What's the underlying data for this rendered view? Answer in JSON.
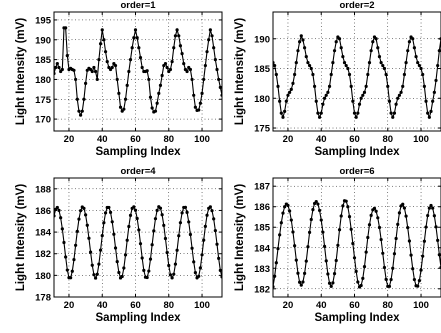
{
  "chart_data": [
    {
      "type": "line",
      "title": "order=1",
      "xlabel": "Sampling Index",
      "ylabel": "Light Intensity (mV)",
      "xlim": [
        11,
        112
      ],
      "ylim": [
        167,
        197
      ],
      "xticks": [
        20,
        40,
        60,
        80,
        100
      ],
      "yticks": [
        170,
        175,
        180,
        185,
        190,
        195
      ],
      "grid": true,
      "x": [
        11,
        12,
        13,
        14,
        15,
        16,
        17,
        18,
        19,
        20,
        21,
        22,
        23,
        24,
        25,
        26,
        27,
        28,
        29,
        30,
        31,
        32,
        33,
        34,
        35,
        36,
        37,
        38,
        39,
        40,
        41,
        42,
        43,
        44,
        45,
        46,
        47,
        48,
        49,
        50,
        51,
        52,
        53,
        54,
        55,
        56,
        57,
        58,
        59,
        60,
        61,
        62,
        63,
        64,
        65,
        66,
        67,
        68,
        69,
        70,
        71,
        72,
        73,
        74,
        75,
        76,
        77,
        78,
        79,
        80,
        81,
        82,
        83,
        84,
        85,
        86,
        87,
        88,
        89,
        90,
        91,
        92,
        93,
        94,
        95,
        96,
        97,
        98,
        99,
        100,
        101,
        102,
        103,
        104,
        105,
        106,
        107,
        108,
        109,
        110,
        111,
        112
      ],
      "y": [
        181.5,
        183,
        184,
        183,
        182,
        182.5,
        193,
        193,
        186,
        182.5,
        182.8,
        182.5,
        182.3,
        180,
        175,
        172,
        171,
        172,
        175,
        179,
        182.3,
        182.8,
        182.5,
        182,
        183,
        182,
        180,
        185,
        189,
        192.5,
        190,
        187,
        184.5,
        183,
        182.5,
        183,
        184,
        183.5,
        180,
        176.5,
        173,
        172,
        172.5,
        175,
        178.5,
        182,
        185,
        188,
        190.5,
        192.5,
        190.5,
        188,
        185.5,
        183,
        182,
        182,
        182.2,
        180,
        175.5,
        172.8,
        171.8,
        172,
        174,
        176.5,
        178.5,
        181,
        183.5,
        184,
        183,
        182,
        182.5,
        184.5,
        188,
        191,
        192.5,
        191,
        188.5,
        186.5,
        184,
        182.5,
        182,
        183,
        182.5,
        180,
        176,
        173,
        172.2,
        172.3,
        174,
        176.5,
        180,
        183.5,
        187,
        190,
        192.5,
        191,
        188,
        185,
        182.5,
        180,
        178,
        176
      ]
    },
    {
      "type": "line",
      "title": "order=2",
      "xlabel": "Sampling Index",
      "ylabel": "Light Intensity (mV)",
      "xlim": [
        11,
        112
      ],
      "ylim": [
        174.5,
        194.5
      ],
      "xticks": [
        20,
        40,
        60,
        80,
        100
      ],
      "yticks": [
        175,
        180,
        185,
        190
      ],
      "grid": true,
      "x": [
        11,
        12,
        13,
        14,
        15,
        16,
        17,
        18,
        19,
        20,
        21,
        22,
        23,
        24,
        25,
        26,
        27,
        28,
        29,
        30,
        31,
        32,
        33,
        34,
        35,
        36,
        37,
        38,
        39,
        40,
        41,
        42,
        43,
        44,
        45,
        46,
        47,
        48,
        49,
        50,
        51,
        52,
        53,
        54,
        55,
        56,
        57,
        58,
        59,
        60,
        61,
        62,
        63,
        64,
        65,
        66,
        67,
        68,
        69,
        70,
        71,
        72,
        73,
        74,
        75,
        76,
        77,
        78,
        79,
        80,
        81,
        82,
        83,
        84,
        85,
        86,
        87,
        88,
        89,
        90,
        91,
        92,
        93,
        94,
        95,
        96,
        97,
        98,
        99,
        100,
        101,
        102,
        103,
        104,
        105,
        106,
        107,
        108,
        109,
        110,
        111,
        112
      ],
      "y": [
        186,
        185.5,
        184,
        182,
        179.5,
        177.5,
        176.8,
        177.8,
        179.5,
        180.5,
        181,
        181.5,
        182.5,
        184,
        186,
        188,
        189.5,
        190.5,
        189.8,
        188.5,
        187,
        186,
        185.5,
        185,
        184,
        182,
        179.5,
        177.5,
        176.8,
        177.5,
        179,
        180,
        180.5,
        181,
        182,
        184,
        186,
        188,
        189.5,
        190.3,
        190,
        188.5,
        187,
        186,
        185.5,
        185,
        184,
        182,
        179.5,
        177.5,
        176.8,
        177.5,
        179,
        180,
        180.5,
        181,
        182,
        184,
        186,
        188,
        189.5,
        190.3,
        190,
        188.5,
        187,
        186,
        185.5,
        185,
        184,
        182,
        179.5,
        177.5,
        176.8,
        177.5,
        179,
        180,
        180.5,
        181,
        182,
        184,
        186,
        188,
        189.5,
        190.3,
        190,
        188.5,
        187,
        186,
        185.5,
        185,
        184,
        182,
        179.5,
        177.5,
        176.8,
        177.8,
        179.5,
        181,
        183,
        185.5,
        188,
        190
      ]
    },
    {
      "type": "line",
      "title": "order=4",
      "xlabel": "Sampling Index",
      "ylabel": "Light Intensity (mV)",
      "xlim": [
        11,
        112
      ],
      "ylim": [
        178,
        189
      ],
      "xticks": [
        20,
        40,
        60,
        80,
        100
      ],
      "yticks": [
        178,
        180,
        182,
        184,
        186,
        188
      ],
      "grid": true,
      "x": [
        11,
        12,
        13,
        14,
        15,
        16,
        17,
        18,
        19,
        20,
        21,
        22,
        23,
        24,
        25,
        26,
        27,
        28,
        29,
        30,
        31,
        32,
        33,
        34,
        35,
        36,
        37,
        38,
        39,
        40,
        41,
        42,
        43,
        44,
        45,
        46,
        47,
        48,
        49,
        50,
        51,
        52,
        53,
        54,
        55,
        56,
        57,
        58,
        59,
        60,
        61,
        62,
        63,
        64,
        65,
        66,
        67,
        68,
        69,
        70,
        71,
        72,
        73,
        74,
        75,
        76,
        77,
        78,
        79,
        80,
        81,
        82,
        83,
        84,
        85,
        86,
        87,
        88,
        89,
        90,
        91,
        92,
        93,
        94,
        95,
        96,
        97,
        98,
        99,
        100,
        101,
        102,
        103,
        104,
        105,
        106,
        107,
        108,
        109,
        110,
        111,
        112
      ],
      "y": [
        185.5,
        186.1,
        186.28,
        186.01,
        185.33,
        184.3,
        183.04,
        181.7,
        180.49,
        179.79,
        179.78,
        180.38,
        181.46,
        182.78,
        184.07,
        185.2,
        185.98,
        186.32,
        186.19,
        185.59,
        184.63,
        183.43,
        182.15,
        180.94,
        180.06,
        179.75,
        180.1,
        181.04,
        182.33,
        183.67,
        184.87,
        185.78,
        186.27,
        186.28,
        185.82,
        184.95,
        183.8,
        182.53,
        181.27,
        180.27,
        179.76,
        179.9,
        180.68,
        181.89,
        183.25,
        184.52,
        185.55,
        186.19,
        186.33,
        186.02,
        185.26,
        184.2,
        182.93,
        181.61,
        180.46,
        179.83,
        179.8,
        180.4,
        181.5,
        182.83,
        184.12,
        185.24,
        186.01,
        186.34,
        186.21,
        185.6,
        184.62,
        183.41,
        182.11,
        180.91,
        180.05,
        179.77,
        180.11,
        181.04,
        182.32,
        183.66,
        184.87,
        185.78,
        186.28,
        186.29,
        185.82,
        184.94,
        183.78,
        182.51,
        181.25,
        180.25,
        179.77,
        179.92,
        180.69,
        181.9,
        183.26,
        184.53,
        185.56,
        186.2,
        186.33,
        185.98,
        185.22,
        184.14,
        182.88,
        181.57,
        180.46,
        179.86
      ]
    },
    {
      "type": "line",
      "title": "order=6",
      "xlabel": "Sampling Index",
      "ylabel": "Light Intensity (mV)",
      "xlim": [
        11,
        112
      ],
      "ylim": [
        181.6,
        187.4
      ],
      "xticks": [
        20,
        40,
        60,
        80,
        100
      ],
      "yticks": [
        182,
        183,
        184,
        185,
        186,
        187
      ],
      "grid": true,
      "x": [
        11,
        12,
        13,
        14,
        15,
        16,
        17,
        18,
        19,
        20,
        21,
        22,
        23,
        24,
        25,
        26,
        27,
        28,
        29,
        30,
        31,
        32,
        33,
        34,
        35,
        36,
        37,
        38,
        39,
        40,
        41,
        42,
        43,
        44,
        45,
        46,
        47,
        48,
        49,
        50,
        51,
        52,
        53,
        54,
        55,
        56,
        57,
        58,
        59,
        60,
        61,
        62,
        63,
        64,
        65,
        66,
        67,
        68,
        69,
        70,
        71,
        72,
        73,
        74,
        75,
        76,
        77,
        78,
        79,
        80,
        81,
        82,
        83,
        84,
        85,
        86,
        87,
        88,
        89,
        90,
        91,
        92,
        93,
        94,
        95,
        96,
        97,
        98,
        99,
        100,
        101,
        102,
        103,
        104,
        105,
        106,
        107,
        108,
        109,
        110,
        111,
        112
      ],
      "y": [
        182.1,
        182.61,
        183.27,
        183.96,
        184.63,
        185.22,
        185.69,
        186.0,
        186.13,
        186.06,
        185.79,
        185.35,
        184.77,
        184.1,
        183.4,
        182.76,
        182.32,
        182.18,
        182.33,
        182.75,
        183.35,
        184.05,
        184.75,
        185.38,
        185.86,
        186.16,
        186.25,
        186.13,
        185.82,
        185.35,
        184.76,
        184.07,
        183.36,
        182.72,
        182.27,
        182.12,
        182.29,
        182.74,
        183.38,
        184.12,
        184.88,
        185.55,
        186.04,
        186.29,
        186.27,
        186.0,
        185.52,
        184.9,
        184.21,
        183.51,
        182.85,
        182.33,
        182.09,
        182.16,
        182.51,
        183.08,
        183.79,
        184.5,
        185.12,
        185.58,
        185.85,
        185.92,
        185.78,
        185.46,
        184.99,
        184.4,
        183.73,
        183.04,
        182.46,
        182.12,
        182.12,
        182.45,
        183.0,
        183.71,
        184.45,
        185.14,
        185.7,
        186.04,
        186.12,
        185.94,
        185.54,
        184.98,
        184.33,
        183.64,
        182.98,
        182.45,
        182.15,
        182.13,
        182.4,
        182.91,
        183.59,
        184.32,
        185.01,
        185.57,
        185.93,
        186.06,
        185.93,
        185.56,
        185.02,
        184.36,
        183.66,
        183.04
      ]
    }
  ]
}
